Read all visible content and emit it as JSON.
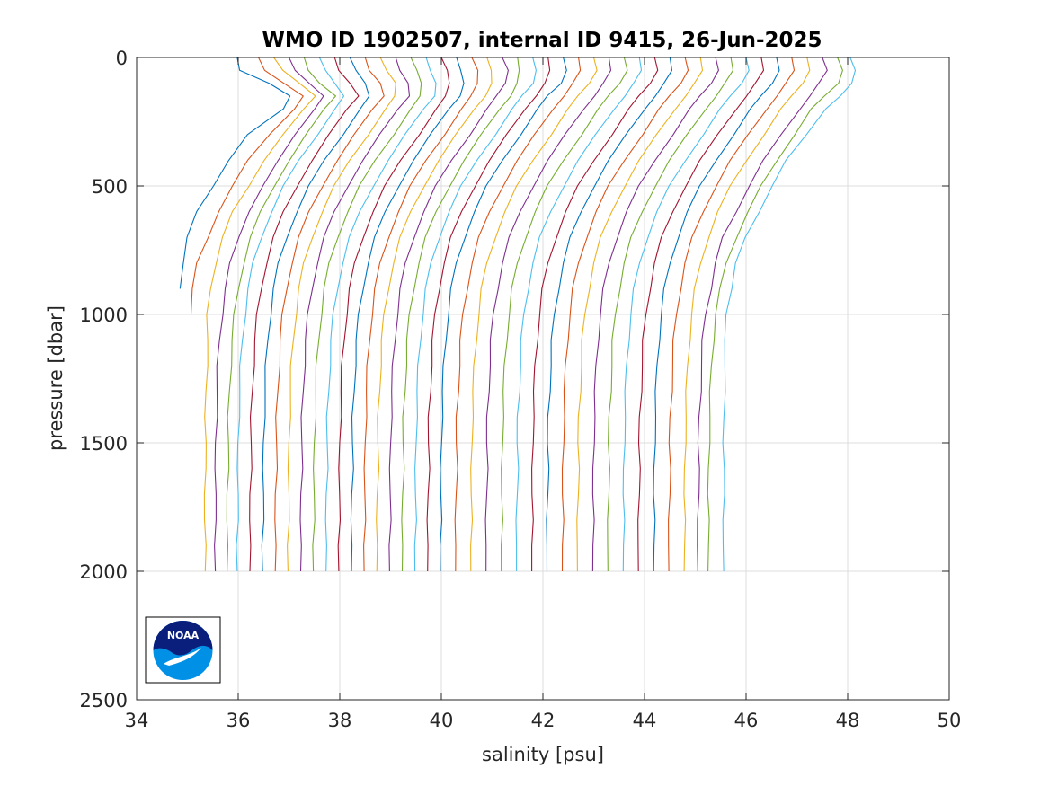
{
  "chart_data": {
    "type": "line",
    "title": "WMO ID 1902507, internal ID 9415, 26-Jun-2025",
    "xlabel": "salinity [psu]",
    "ylabel": "pressure [dbar]",
    "xlim": [
      34,
      50
    ],
    "ylim": [
      0,
      2500
    ],
    "y_reversed": true,
    "grid": true,
    "xticks": [
      "34",
      "36",
      "38",
      "40",
      "42",
      "44",
      "46",
      "48",
      "50"
    ],
    "yticks": [
      "0",
      "500",
      "1000",
      "1500",
      "2000",
      "2500"
    ],
    "colors": [
      "#0072BD",
      "#D95319",
      "#EDB120",
      "#7E2F8E",
      "#77AC30",
      "#4DBEEE",
      "#A2142F"
    ],
    "profile_pressure": [
      0,
      50,
      100,
      150,
      200,
      300,
      400,
      500,
      600,
      700,
      800,
      900,
      1000,
      1100,
      1200,
      1300,
      1400,
      1500,
      1600,
      1700,
      1800,
      1900,
      2000
    ],
    "profiles": [
      {
        "salinity": [
          35.98,
          36.05,
          36.6,
          37.0,
          36.9,
          36.2,
          35.8,
          35.5,
          35.2,
          35.0,
          34.9,
          34.85,
          null,
          null,
          null,
          null,
          null,
          null,
          null,
          null,
          null,
          null,
          null
        ]
      },
      {
        "salinity": [
          36.4,
          36.5,
          36.9,
          37.3,
          37.1,
          36.6,
          36.2,
          35.9,
          35.6,
          35.4,
          35.2,
          35.1,
          35.05,
          null,
          null,
          null,
          null,
          null,
          null,
          null,
          null,
          null,
          null
        ]
      },
      {
        "salinity": [
          36.7,
          36.9,
          37.2,
          37.5,
          37.3,
          36.9,
          36.5,
          36.2,
          35.9,
          35.7,
          35.55,
          35.45,
          35.4,
          35.4,
          35.38,
          35.37,
          35.36,
          35.36,
          35.35,
          35.35,
          35.35,
          35.35,
          35.35
        ]
      },
      {
        "salinity": [
          37.0,
          37.1,
          37.4,
          37.7,
          37.5,
          37.1,
          36.8,
          36.5,
          36.2,
          36.0,
          35.85,
          35.75,
          35.68,
          35.63,
          35.6,
          35.58,
          35.57,
          35.56,
          35.56,
          35.55,
          35.55,
          35.55,
          35.55
        ]
      },
      {
        "salinity": [
          37.3,
          37.4,
          37.6,
          37.9,
          37.7,
          37.35,
          37.0,
          36.7,
          36.45,
          36.25,
          36.1,
          36.0,
          35.93,
          35.88,
          35.85,
          35.83,
          35.81,
          35.8,
          35.8,
          35.79,
          35.79,
          35.78,
          35.78
        ]
      },
      {
        "salinity": [
          37.6,
          37.7,
          37.9,
          38.1,
          37.9,
          37.55,
          37.2,
          36.9,
          36.65,
          36.45,
          36.3,
          36.2,
          36.13,
          36.08,
          36.05,
          36.03,
          36.01,
          36.0,
          36.0,
          35.99,
          35.99,
          35.98,
          35.98
        ]
      },
      {
        "salinity": [
          37.9,
          38.0,
          38.2,
          38.35,
          38.15,
          37.8,
          37.45,
          37.15,
          36.9,
          36.7,
          36.55,
          36.45,
          36.38,
          36.33,
          36.3,
          36.28,
          36.26,
          36.25,
          36.25,
          36.24,
          36.24,
          36.23,
          36.23
        ]
      },
      {
        "salinity": [
          38.2,
          38.3,
          38.5,
          38.6,
          38.4,
          38.05,
          37.7,
          37.4,
          37.15,
          36.95,
          36.8,
          36.7,
          36.63,
          36.58,
          36.55,
          36.53,
          36.51,
          36.5,
          36.5,
          36.49,
          36.49,
          36.48,
          36.48
        ]
      },
      {
        "salinity": [
          38.5,
          38.6,
          38.8,
          38.85,
          38.65,
          38.3,
          37.95,
          37.65,
          37.4,
          37.2,
          37.05,
          36.95,
          36.88,
          36.83,
          36.8,
          36.78,
          36.76,
          36.75,
          36.75,
          36.74,
          36.74,
          36.73,
          36.73
        ]
      },
      {
        "salinity": [
          38.8,
          38.9,
          39.1,
          39.1,
          38.9,
          38.55,
          38.2,
          37.9,
          37.65,
          37.45,
          37.3,
          37.2,
          37.13,
          37.08,
          37.05,
          37.03,
          37.01,
          37.0,
          37.0,
          36.99,
          36.99,
          36.98,
          36.98
        ]
      },
      {
        "salinity": [
          39.1,
          39.2,
          39.35,
          39.35,
          39.15,
          38.8,
          38.45,
          38.15,
          37.9,
          37.7,
          37.55,
          37.45,
          37.38,
          37.33,
          37.3,
          37.28,
          37.26,
          37.25,
          37.25,
          37.24,
          37.24,
          37.23,
          37.23
        ]
      },
      {
        "salinity": [
          39.4,
          39.5,
          39.6,
          39.6,
          39.4,
          39.05,
          38.7,
          38.4,
          38.15,
          37.95,
          37.8,
          37.7,
          37.63,
          37.58,
          37.55,
          37.53,
          37.51,
          37.5,
          37.5,
          37.49,
          37.49,
          37.48,
          37.48
        ]
      },
      {
        "salinity": [
          39.7,
          39.8,
          39.9,
          39.85,
          39.65,
          39.3,
          38.95,
          38.65,
          38.4,
          38.2,
          38.05,
          37.95,
          37.88,
          37.83,
          37.8,
          37.78,
          37.76,
          37.75,
          37.75,
          37.74,
          37.74,
          37.73,
          37.73
        ]
      },
      {
        "salinity": [
          40.0,
          40.1,
          40.15,
          40.1,
          39.9,
          39.55,
          39.2,
          38.9,
          38.65,
          38.45,
          38.3,
          38.2,
          38.13,
          38.08,
          38.05,
          38.03,
          38.01,
          38.0,
          38.0,
          37.99,
          37.99,
          37.98,
          37.98
        ]
      },
      {
        "salinity": [
          40.3,
          40.4,
          40.45,
          40.35,
          40.15,
          39.8,
          39.45,
          39.15,
          38.9,
          38.7,
          38.55,
          38.45,
          38.38,
          38.33,
          38.3,
          38.28,
          38.26,
          38.25,
          38.25,
          38.24,
          38.24,
          38.23,
          38.23
        ]
      },
      {
        "salinity": [
          40.6,
          40.7,
          40.7,
          40.6,
          40.4,
          40.05,
          39.7,
          39.4,
          39.15,
          38.95,
          38.8,
          38.7,
          38.63,
          38.58,
          38.55,
          38.53,
          38.51,
          38.5,
          38.5,
          38.49,
          38.49,
          38.48,
          38.48
        ]
      },
      {
        "salinity": [
          40.9,
          41.0,
          41.0,
          40.85,
          40.65,
          40.3,
          39.95,
          39.65,
          39.4,
          39.2,
          39.05,
          38.95,
          38.88,
          38.83,
          38.8,
          38.78,
          38.76,
          38.75,
          38.75,
          38.74,
          38.74,
          38.73,
          38.73
        ]
      },
      {
        "salinity": [
          41.2,
          41.3,
          41.25,
          41.1,
          40.9,
          40.55,
          40.2,
          39.9,
          39.65,
          39.45,
          39.3,
          39.2,
          39.13,
          39.08,
          39.05,
          39.03,
          39.01,
          39.0,
          39.0,
          38.99,
          38.99,
          38.98,
          38.98
        ]
      },
      {
        "salinity": [
          41.5,
          41.55,
          41.5,
          41.35,
          41.15,
          40.8,
          40.45,
          40.15,
          39.9,
          39.7,
          39.55,
          39.45,
          39.38,
          39.33,
          39.3,
          39.28,
          39.26,
          39.25,
          39.25,
          39.24,
          39.24,
          39.23,
          39.23
        ]
      },
      {
        "salinity": [
          41.8,
          41.85,
          41.8,
          41.6,
          41.4,
          41.05,
          40.7,
          40.4,
          40.15,
          39.95,
          39.8,
          39.7,
          39.63,
          39.58,
          39.55,
          39.53,
          39.51,
          39.5,
          39.5,
          39.49,
          39.49,
          39.48,
          39.48
        ]
      },
      {
        "salinity": [
          42.1,
          42.15,
          42.05,
          41.85,
          41.65,
          41.3,
          40.95,
          40.65,
          40.4,
          40.2,
          40.05,
          39.95,
          39.88,
          39.83,
          39.8,
          39.78,
          39.76,
          39.75,
          39.75,
          39.74,
          39.74,
          39.73,
          39.73
        ]
      },
      {
        "salinity": [
          42.4,
          42.45,
          42.35,
          42.1,
          41.9,
          41.55,
          41.2,
          40.9,
          40.65,
          40.45,
          40.3,
          40.2,
          40.13,
          40.08,
          40.05,
          40.03,
          40.01,
          40.0,
          40.0,
          39.99,
          39.99,
          39.98,
          39.98
        ]
      },
      {
        "salinity": [
          42.7,
          42.75,
          42.6,
          42.4,
          42.2,
          41.85,
          41.5,
          41.2,
          40.95,
          40.75,
          40.6,
          40.5,
          40.43,
          40.38,
          40.35,
          40.33,
          40.31,
          40.3,
          40.3,
          40.29,
          40.29,
          40.28,
          40.28
        ]
      },
      {
        "salinity": [
          43.0,
          43.05,
          42.9,
          42.7,
          42.5,
          42.15,
          41.8,
          41.5,
          41.25,
          41.05,
          40.9,
          40.8,
          40.73,
          40.68,
          40.65,
          40.63,
          40.61,
          40.6,
          40.6,
          40.59,
          40.59,
          40.58,
          40.58
        ]
      },
      {
        "salinity": [
          43.3,
          43.35,
          43.2,
          43.0,
          42.8,
          42.45,
          42.1,
          41.8,
          41.55,
          41.35,
          41.2,
          41.1,
          41.03,
          40.98,
          40.95,
          40.93,
          40.91,
          40.9,
          40.9,
          40.89,
          40.89,
          40.88,
          40.88
        ]
      },
      {
        "salinity": [
          43.6,
          43.65,
          43.5,
          43.3,
          43.1,
          42.75,
          42.4,
          42.1,
          41.85,
          41.65,
          41.5,
          41.4,
          41.33,
          41.28,
          41.25,
          41.23,
          41.21,
          41.2,
          41.2,
          41.19,
          41.19,
          41.18,
          41.18
        ]
      },
      {
        "salinity": [
          43.9,
          43.95,
          43.8,
          43.6,
          43.4,
          43.05,
          42.7,
          42.4,
          42.15,
          41.95,
          41.8,
          41.7,
          41.63,
          41.58,
          41.55,
          41.53,
          41.51,
          41.5,
          41.5,
          41.49,
          41.49,
          41.48,
          41.48
        ]
      },
      {
        "salinity": [
          44.2,
          44.25,
          44.1,
          43.9,
          43.7,
          43.35,
          43.0,
          42.7,
          42.45,
          42.25,
          42.1,
          42.0,
          41.93,
          41.88,
          41.85,
          41.83,
          41.81,
          41.8,
          41.8,
          41.79,
          41.79,
          41.78,
          41.78
        ]
      },
      {
        "salinity": [
          44.5,
          44.55,
          44.4,
          44.2,
          44.0,
          43.65,
          43.3,
          43.0,
          42.75,
          42.55,
          42.4,
          42.3,
          42.23,
          42.18,
          42.15,
          42.13,
          42.11,
          42.1,
          42.1,
          42.09,
          42.09,
          42.08,
          42.08
        ]
      },
      {
        "salinity": [
          44.8,
          44.85,
          44.7,
          44.5,
          44.3,
          43.95,
          43.6,
          43.3,
          43.05,
          42.85,
          42.7,
          42.6,
          42.53,
          42.48,
          42.45,
          42.43,
          42.41,
          42.4,
          42.4,
          42.39,
          42.39,
          42.38,
          42.38
        ]
      },
      {
        "salinity": [
          45.1,
          45.15,
          45.0,
          44.8,
          44.6,
          44.25,
          43.9,
          43.6,
          43.35,
          43.15,
          43.0,
          42.9,
          42.83,
          42.78,
          42.75,
          42.73,
          42.71,
          42.7,
          42.7,
          42.69,
          42.69,
          42.68,
          42.68
        ]
      },
      {
        "salinity": [
          45.4,
          45.45,
          45.3,
          45.1,
          44.9,
          44.55,
          44.2,
          43.9,
          43.65,
          43.45,
          43.3,
          43.2,
          43.13,
          43.08,
          43.05,
          43.03,
          43.01,
          43.0,
          43.0,
          42.99,
          42.99,
          42.98,
          42.98
        ]
      },
      {
        "salinity": [
          45.7,
          45.75,
          45.6,
          45.4,
          45.2,
          44.85,
          44.5,
          44.2,
          43.95,
          43.75,
          43.6,
          43.5,
          43.43,
          43.38,
          43.35,
          43.33,
          43.31,
          43.3,
          43.3,
          43.29,
          43.29,
          43.28,
          43.28
        ]
      },
      {
        "salinity": [
          46.0,
          46.05,
          45.9,
          45.7,
          45.5,
          45.15,
          44.8,
          44.5,
          44.25,
          44.05,
          43.9,
          43.8,
          43.73,
          43.68,
          43.65,
          43.63,
          43.61,
          43.6,
          43.6,
          43.59,
          43.59,
          43.58,
          43.58
        ]
      },
      {
        "salinity": [
          46.3,
          46.35,
          46.2,
          46.0,
          45.8,
          45.45,
          45.1,
          44.8,
          44.55,
          44.35,
          44.2,
          44.1,
          44.03,
          43.98,
          43.95,
          43.93,
          43.91,
          43.9,
          43.9,
          43.89,
          43.89,
          43.88,
          43.88
        ]
      },
      {
        "salinity": [
          46.6,
          46.65,
          46.5,
          46.3,
          46.1,
          45.75,
          45.4,
          45.1,
          44.85,
          44.65,
          44.5,
          44.4,
          44.33,
          44.28,
          44.25,
          44.23,
          44.21,
          44.2,
          44.2,
          44.19,
          44.19,
          44.18,
          44.18
        ]
      },
      {
        "salinity": [
          46.9,
          46.95,
          46.8,
          46.6,
          46.4,
          46.05,
          45.7,
          45.4,
          45.15,
          44.95,
          44.8,
          44.7,
          44.63,
          44.58,
          44.55,
          44.53,
          44.51,
          44.5,
          44.5,
          44.49,
          44.49,
          44.48,
          44.48
        ]
      },
      {
        "salinity": [
          47.2,
          47.25,
          47.1,
          46.9,
          46.7,
          46.35,
          46.0,
          45.7,
          45.45,
          45.25,
          45.1,
          45.0,
          44.93,
          44.88,
          44.85,
          44.83,
          44.81,
          44.8,
          44.8,
          44.79,
          44.79,
          44.78,
          44.78
        ]
      },
      {
        "salinity": [
          47.5,
          47.6,
          47.45,
          47.25,
          47.05,
          46.7,
          46.35,
          46.05,
          45.8,
          45.55,
          45.4,
          45.3,
          45.2,
          45.15,
          45.12,
          45.1,
          45.08,
          45.07,
          45.07,
          45.06,
          45.06,
          45.05,
          45.05
        ]
      },
      {
        "salinity": [
          47.8,
          47.9,
          47.8,
          47.55,
          47.3,
          46.95,
          46.6,
          46.3,
          46.05,
          45.8,
          45.6,
          45.5,
          45.4,
          45.35,
          45.32,
          45.3,
          45.28,
          45.27,
          45.27,
          45.26,
          45.26,
          45.25,
          45.25
        ]
      },
      {
        "salinity": [
          48.05,
          48.15,
          48.1,
          47.85,
          47.55,
          47.2,
          46.8,
          46.5,
          46.25,
          46.0,
          45.8,
          45.7,
          45.6,
          45.6,
          45.58,
          45.57,
          45.57,
          45.56,
          45.56,
          45.56,
          45.56,
          45.56,
          45.56
        ]
      }
    ],
    "logo_text": "NOAA"
  }
}
